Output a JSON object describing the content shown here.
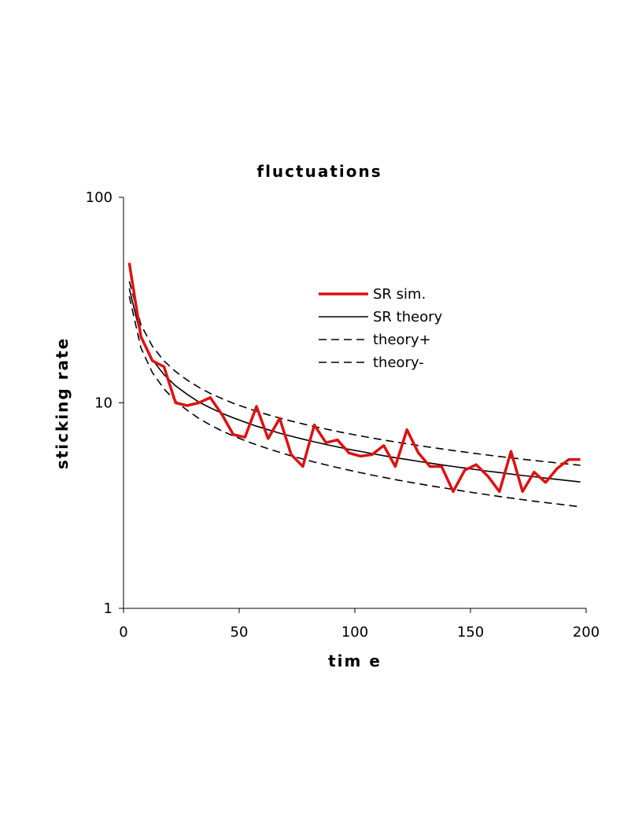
{
  "chart_data": {
    "type": "line",
    "title": "fluctuations",
    "xlabel": "tim e",
    "ylabel": "sticking rate",
    "xlim": [
      0,
      200
    ],
    "ylim": [
      1,
      100
    ],
    "yscale": "log",
    "x_ticks": [
      "0",
      "50",
      "100",
      "150",
      "200"
    ],
    "y_ticks": [
      "1",
      "10",
      "100"
    ],
    "x_tick_values": [
      0,
      50,
      100,
      150,
      200
    ],
    "y_tick_values": [
      1,
      10,
      100
    ],
    "grid": false,
    "legend_position": "upper-right",
    "series": [
      {
        "name": "SR sim.",
        "color": "#dd1111",
        "style": "solid-thick",
        "x": [
          2.5,
          7.5,
          12.5,
          17.5,
          22.5,
          27.5,
          32.5,
          37.5,
          42.5,
          47.5,
          52.5,
          57.5,
          62.5,
          67.5,
          72.5,
          77.5,
          82.5,
          87.5,
          92.5,
          97.5,
          102.5,
          107.5,
          112.5,
          117.5,
          122.5,
          127.5,
          132.5,
          137.5,
          142.5,
          147.5,
          152.5,
          157.5,
          162.5,
          167.5,
          172.5,
          177.5,
          182.5,
          187.5,
          192.5,
          197.5
        ],
        "y": [
          48,
          21,
          16,
          15,
          10,
          9.7,
          10,
          10.6,
          8.8,
          7.0,
          6.8,
          9.6,
          6.7,
          8.4,
          5.6,
          4.9,
          7.8,
          6.4,
          6.6,
          5.7,
          5.5,
          5.6,
          6.2,
          4.9,
          7.4,
          5.7,
          4.9,
          4.9,
          3.7,
          4.7,
          5.0,
          4.4,
          3.7,
          5.8,
          3.7,
          4.6,
          4.1,
          4.8,
          5.3,
          5.3
        ]
      },
      {
        "name": "SR theory",
        "color": "#000000",
        "style": "solid",
        "x": [
          2.5,
          7.5,
          12.5,
          17.5,
          22.5,
          27.5,
          32.5,
          37.5,
          42.5,
          47.5,
          52.5,
          57.5,
          62.5,
          67.5,
          72.5,
          77.5,
          82.5,
          87.5,
          92.5,
          97.5,
          102.5,
          107.5,
          112.5,
          117.5,
          122.5,
          127.5,
          132.5,
          137.5,
          142.5,
          147.5,
          152.5,
          157.5,
          162.5,
          167.5,
          172.5,
          177.5,
          182.5,
          187.5,
          192.5,
          197.5
        ],
        "y": [
          36,
          21,
          16.2,
          13.7,
          12.1,
          11.0,
          10.1,
          9.45,
          8.9,
          8.45,
          8.05,
          7.7,
          7.4,
          7.12,
          6.88,
          6.66,
          6.46,
          6.27,
          6.1,
          5.94,
          5.8,
          5.66,
          5.53,
          5.41,
          5.3,
          5.19,
          5.09,
          4.99,
          4.9,
          4.82,
          4.73,
          4.65,
          4.58,
          4.5,
          4.43,
          4.37,
          4.3,
          4.24,
          4.18,
          4.12
        ]
      },
      {
        "name": "theory+",
        "color": "#000000",
        "style": "dashed",
        "x": [
          2.5,
          7.5,
          12.5,
          17.5,
          22.5,
          27.5,
          32.5,
          37.5,
          42.5,
          47.5,
          52.5,
          57.5,
          62.5,
          67.5,
          72.5,
          77.5,
          82.5,
          87.5,
          92.5,
          97.5,
          102.5,
          107.5,
          112.5,
          117.5,
          122.5,
          127.5,
          132.5,
          137.5,
          142.5,
          147.5,
          152.5,
          157.5,
          162.5,
          167.5,
          172.5,
          177.5,
          182.5,
          187.5,
          192.5,
          197.5
        ],
        "y": [
          39,
          24,
          18.8,
          16.0,
          14.2,
          12.9,
          11.9,
          11.1,
          10.5,
          9.95,
          9.5,
          9.1,
          8.75,
          8.43,
          8.15,
          7.9,
          7.66,
          7.45,
          7.25,
          7.07,
          6.9,
          6.74,
          6.59,
          6.45,
          6.32,
          6.2,
          6.08,
          5.97,
          5.86,
          5.76,
          5.66,
          5.57,
          5.48,
          5.4,
          5.32,
          5.24,
          5.17,
          5.1,
          5.03,
          4.97
        ]
      },
      {
        "name": "theory-",
        "color": "#000000",
        "style": "dashed",
        "x": [
          2.5,
          7.5,
          12.5,
          17.5,
          22.5,
          27.5,
          32.5,
          37.5,
          42.5,
          47.5,
          52.5,
          57.5,
          62.5,
          67.5,
          72.5,
          77.5,
          82.5,
          87.5,
          92.5,
          97.5,
          102.5,
          107.5,
          112.5,
          117.5,
          122.5,
          127.5,
          132.5,
          137.5,
          142.5,
          147.5,
          152.5,
          157.5,
          162.5,
          167.5,
          172.5,
          177.5,
          182.5,
          187.5,
          192.5,
          197.5
        ],
        "y": [
          33,
          18.5,
          14.0,
          11.7,
          10.2,
          9.2,
          8.4,
          7.8,
          7.3,
          6.9,
          6.55,
          6.25,
          5.98,
          5.74,
          5.52,
          5.33,
          5.15,
          4.99,
          4.84,
          4.7,
          4.57,
          4.45,
          4.34,
          4.23,
          4.13,
          4.04,
          3.95,
          3.87,
          3.79,
          3.71,
          3.64,
          3.57,
          3.5,
          3.44,
          3.38,
          3.32,
          3.27,
          3.22,
          3.17,
          3.12
        ]
      }
    ]
  }
}
